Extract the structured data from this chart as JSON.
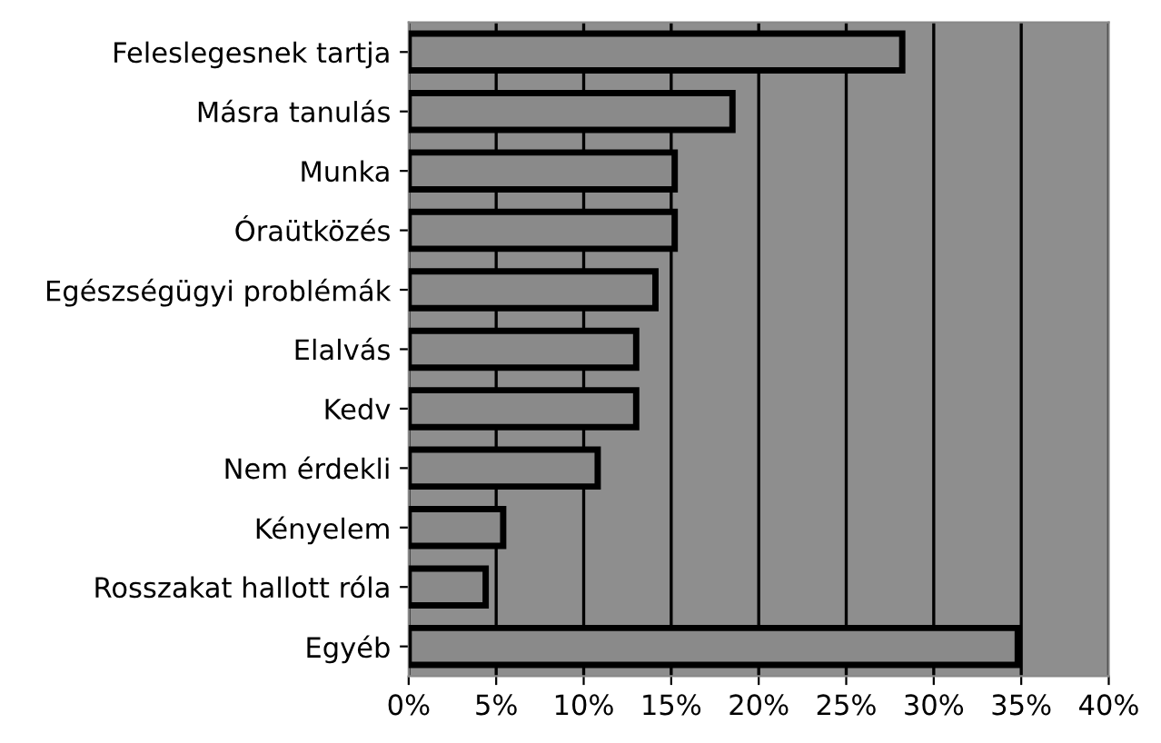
{
  "chart_data": {
    "type": "bar",
    "orientation": "horizontal",
    "categories": [
      "Feleslegesnek tartja",
      "Másra tanulás",
      "Munka",
      "Óraütközés",
      "Egészségügyi problémák",
      "Elalvás",
      "Kedv",
      "Nem érdekli",
      "Kényelem",
      "Rosszakat hallott róla",
      "Egyéb"
    ],
    "values": [
      28.2,
      18.5,
      15.2,
      15.2,
      14.1,
      13.0,
      13.0,
      10.8,
      5.4,
      4.4,
      34.8
    ],
    "color": "#8a8a8a",
    "xlim": [
      0,
      40
    ],
    "xticks": [
      {
        "value": 0,
        "label": "0%"
      },
      {
        "value": 5,
        "label": "5%"
      },
      {
        "value": 10,
        "label": "10%"
      },
      {
        "value": 15,
        "label": "15%"
      },
      {
        "value": 20,
        "label": "20%"
      },
      {
        "value": 25,
        "label": "25%"
      },
      {
        "value": 30,
        "label": "30%"
      },
      {
        "value": 35,
        "label": "35%"
      },
      {
        "value": 40,
        "label": "40%"
      }
    ],
    "grid": "x",
    "legend": false
  }
}
